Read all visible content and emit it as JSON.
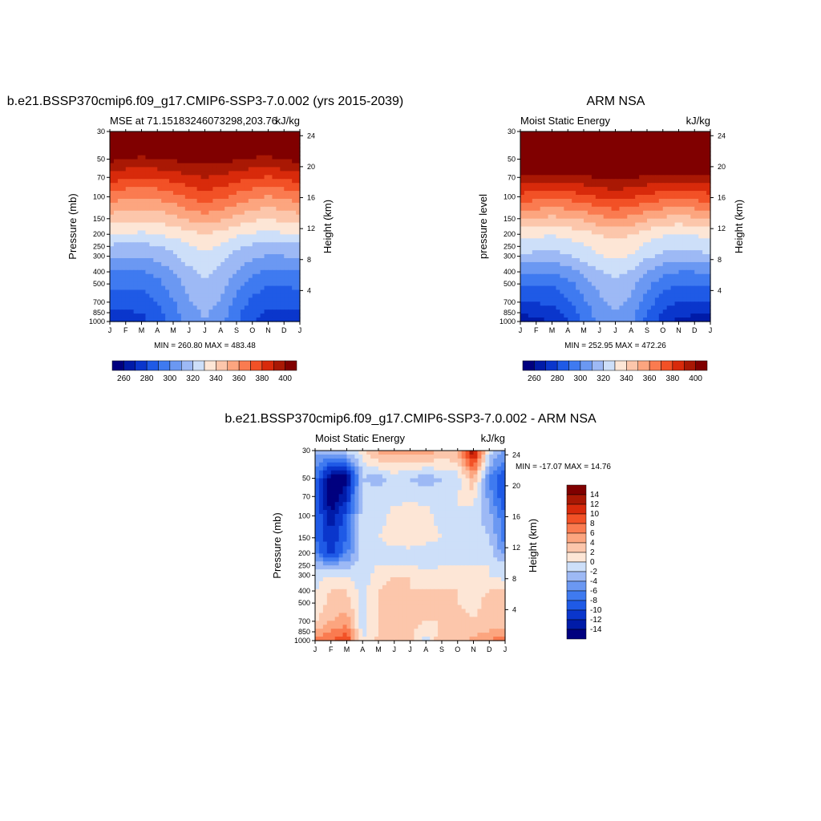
{
  "palette": [
    "#00007f",
    "#001ba8",
    "#0a36cc",
    "#1f5ae6",
    "#3f7af0",
    "#6b98f2",
    "#9db9f5",
    "#cddff9",
    "#fde6d6",
    "#fcc6ab",
    "#fca57f",
    "#fa7b50",
    "#f25126",
    "#d82a0b",
    "#a91804",
    "#800000"
  ],
  "chart_data": [
    {
      "type": "heatmap",
      "title": "b.e21.BSSP370cmip6.f09_g17.CMIP6-SSP3-7.0.002 (yrs 2015-2039)",
      "subtitle_left": "MSE at 71.15183246073298,203.76",
      "subtitle_right": "kJ/kg",
      "ylabel": "Pressure (mb)",
      "ylabel_right": "Height (km)",
      "x_ticks": [
        "J",
        "F",
        "M",
        "A",
        "M",
        "J",
        "J",
        "A",
        "S",
        "O",
        "N",
        "D",
        "J"
      ],
      "y_ticks": [
        "30",
        "50",
        "70",
        "100",
        "150",
        "200",
        "250",
        "300",
        "400",
        "500",
        "700",
        "850",
        "1000"
      ],
      "y_ticks_right": [
        "24",
        "20",
        "16",
        "12",
        "8",
        "4"
      ],
      "minmax": "MIN = 260.80 MAX = 483.48",
      "levels": [
        260,
        270,
        280,
        290,
        300,
        310,
        320,
        330,
        340,
        350,
        360,
        370,
        380,
        390,
        400
      ],
      "colorbar_labels": [
        "260",
        "280",
        "300",
        "320",
        "340",
        "360",
        "380",
        "400"
      ],
      "pressure_levels": [
        30,
        50,
        70,
        100,
        150,
        200,
        250,
        300,
        400,
        500,
        700,
        850,
        1000
      ],
      "values": [
        [
          420,
          420,
          420,
          420,
          420,
          420,
          420,
          420,
          420,
          420,
          420,
          420,
          420
        ],
        [
          403,
          400,
          398,
          400,
          401,
          404,
          404,
          404,
          401,
          399,
          397,
          401,
          403
        ],
        [
          385,
          382,
          380,
          382,
          384,
          388,
          390,
          388,
          384,
          381,
          379,
          382,
          385
        ],
        [
          365,
          362,
          360,
          362,
          366,
          372,
          375,
          372,
          367,
          362,
          359,
          362,
          365
        ],
        [
          345,
          343,
          342,
          343,
          347,
          352,
          356,
          352,
          346,
          342,
          340,
          343,
          345
        ],
        [
          330,
          329,
          328,
          330,
          333,
          337,
          340,
          337,
          332,
          329,
          327,
          329,
          330
        ],
        [
          318,
          318,
          317,
          319,
          323,
          329,
          333,
          329,
          322,
          318,
          316,
          317,
          318
        ],
        [
          312,
          311,
          310,
          313,
          318,
          324,
          328,
          324,
          317,
          312,
          309,
          310,
          312
        ],
        [
          300,
          299,
          299,
          303,
          310,
          318,
          322,
          318,
          309,
          302,
          298,
          298,
          300
        ],
        [
          293,
          292,
          292,
          297,
          305,
          314,
          318,
          314,
          304,
          295,
          291,
          291,
          293
        ],
        [
          284,
          284,
          284,
          290,
          299,
          309,
          314,
          309,
          297,
          287,
          283,
          283,
          284
        ],
        [
          279,
          279,
          280,
          287,
          296,
          307,
          311,
          306,
          293,
          283,
          278,
          278,
          279
        ],
        [
          276,
          276,
          277,
          284,
          294,
          305,
          310,
          304,
          291,
          281,
          276,
          275,
          276
        ]
      ]
    },
    {
      "type": "heatmap",
      "title": "ARM NSA",
      "subtitle_left": "Moist Static Energy",
      "subtitle_right": "kJ/kg",
      "ylabel": "pressure level",
      "ylabel_right": "Height (km)",
      "x_ticks": [
        "J",
        "F",
        "M",
        "A",
        "M",
        "J",
        "J",
        "A",
        "S",
        "O",
        "N",
        "D",
        "J"
      ],
      "y_ticks": [
        "30",
        "50",
        "70",
        "100",
        "150",
        "200",
        "250",
        "300",
        "400",
        "500",
        "700",
        "850",
        "1000"
      ],
      "y_ticks_right": [
        "24",
        "20",
        "16",
        "12",
        "8",
        "4"
      ],
      "minmax": "MIN = 252.95 MAX = 472.26",
      "levels": [
        260,
        270,
        280,
        290,
        300,
        310,
        320,
        330,
        340,
        350,
        360,
        370,
        380,
        390,
        400
      ],
      "colorbar_labels": [
        "260",
        "280",
        "300",
        "320",
        "340",
        "360",
        "380",
        "400"
      ],
      "pressure_levels": [
        30,
        50,
        70,
        100,
        150,
        200,
        250,
        300,
        400,
        500,
        700,
        850,
        1000
      ],
      "values": [
        [
          420,
          420,
          420,
          420,
          420,
          420,
          420,
          420,
          420,
          420,
          420,
          420,
          420
        ],
        [
          420,
          420,
          420,
          420,
          420,
          420,
          420,
          420,
          420,
          420,
          420,
          420,
          420
        ],
        [
          398,
          396,
          394,
          396,
          398,
          401,
          402,
          401,
          398,
          396,
          394,
          396,
          398
        ],
        [
          376,
          374,
          372,
          374,
          377,
          381,
          383,
          381,
          377,
          374,
          372,
          374,
          376
        ],
        [
          351,
          349,
          347,
          349,
          352,
          357,
          360,
          357,
          352,
          348,
          346,
          348,
          351
        ],
        [
          333,
          332,
          331,
          333,
          336,
          340,
          343,
          340,
          335,
          331,
          329,
          331,
          333
        ],
        [
          325,
          324,
          323,
          325,
          329,
          334,
          337,
          334,
          328,
          324,
          322,
          323,
          325
        ],
        [
          318,
          317,
          316,
          319,
          324,
          329,
          332,
          329,
          322,
          317,
          315,
          316,
          318
        ],
        [
          302,
          301,
          301,
          305,
          312,
          319,
          323,
          319,
          310,
          303,
          300,
          300,
          302
        ],
        [
          292,
          291,
          291,
          296,
          305,
          313,
          318,
          313,
          303,
          294,
          290,
          290,
          292
        ],
        [
          281,
          281,
          282,
          288,
          298,
          308,
          313,
          308,
          295,
          285,
          280,
          280,
          281
        ],
        [
          271,
          272,
          274,
          283,
          294,
          305,
          310,
          304,
          290,
          278,
          272,
          271,
          271
        ],
        [
          266,
          268,
          270,
          280,
          292,
          303,
          308,
          302,
          287,
          275,
          268,
          267,
          266
        ]
      ]
    },
    {
      "type": "heatmap",
      "title": "b.e21.BSSP370cmip6.f09_g17.CMIP6-SSP3-7.0.002 - ARM NSA",
      "subtitle_left": "Moist Static Energy",
      "subtitle_right": "kJ/kg",
      "ylabel": "Pressure (mb)",
      "ylabel_right": "Height (km)",
      "x_ticks": [
        "J",
        "F",
        "M",
        "A",
        "M",
        "J",
        "J",
        "A",
        "S",
        "O",
        "N",
        "D",
        "J"
      ],
      "y_ticks": [
        "30",
        "50",
        "70",
        "100",
        "150",
        "200",
        "250",
        "300",
        "400",
        "500",
        "700",
        "850",
        "1000"
      ],
      "y_ticks_right": [
        "24",
        "20",
        "16",
        "12",
        "8",
        "4"
      ],
      "minmax": "MIN = -17.07 MAX =  14.76",
      "levels": [
        -14,
        -12,
        -10,
        -8,
        -6,
        -4,
        -2,
        0,
        2,
        4,
        6,
        8,
        10,
        12,
        14
      ],
      "colorbar_labels": [
        "14",
        "12",
        "10",
        "8",
        "6",
        "4",
        "2",
        "0",
        "-2",
        "-4",
        "-6",
        "-8",
        "-10",
        "-12",
        "-14"
      ],
      "pressure_levels": [
        30,
        50,
        70,
        100,
        150,
        200,
        250,
        300,
        400,
        500,
        700,
        850,
        1000
      ],
      "values": [
        [
          -3,
          -3,
          -1,
          1,
          5,
          5,
          5,
          5,
          4,
          4,
          14,
          -1,
          -4
        ],
        [
          -7,
          -15,
          -15,
          -2,
          -3,
          -1,
          -2,
          -3,
          -2,
          -1,
          4,
          -6,
          -10
        ],
        [
          -8,
          -17,
          -12,
          -1,
          -1,
          -1,
          -1,
          -1,
          -1,
          0,
          1,
          -5,
          -10
        ],
        [
          -8,
          -13,
          -9,
          -1,
          -1,
          1,
          2,
          1,
          -1,
          0,
          -1,
          -3,
          -8
        ],
        [
          -8,
          -12,
          -8,
          -1,
          0,
          1,
          2,
          1,
          0,
          0,
          -1,
          -2,
          -7
        ],
        [
          -6,
          -11,
          -6,
          -1,
          -1,
          -1,
          -1,
          -2,
          -2,
          -1,
          -1,
          -1,
          -5
        ],
        [
          -3,
          -3,
          -3,
          -1,
          0,
          0,
          0,
          -1,
          0,
          0,
          0,
          0,
          -1
        ],
        [
          -1,
          0,
          0,
          -1,
          1,
          2,
          2,
          1,
          1,
          0,
          0,
          0,
          -1
        ],
        [
          0,
          2,
          2,
          -1,
          2,
          3,
          2,
          2,
          2,
          2,
          1,
          2,
          2
        ],
        [
          0,
          3,
          3,
          -1,
          2,
          3,
          3,
          3,
          3,
          2,
          1,
          3,
          3
        ],
        [
          2,
          4,
          5,
          -1,
          2,
          4,
          3,
          2,
          2,
          4,
          2,
          3,
          3
        ],
        [
          4,
          6,
          8,
          -1,
          2,
          3,
          3,
          0,
          3,
          2,
          3,
          4,
          5
        ],
        [
          7,
          8,
          10,
          0,
          3,
          3,
          3,
          -1,
          4,
          3,
          5,
          6,
          8
        ]
      ]
    }
  ]
}
